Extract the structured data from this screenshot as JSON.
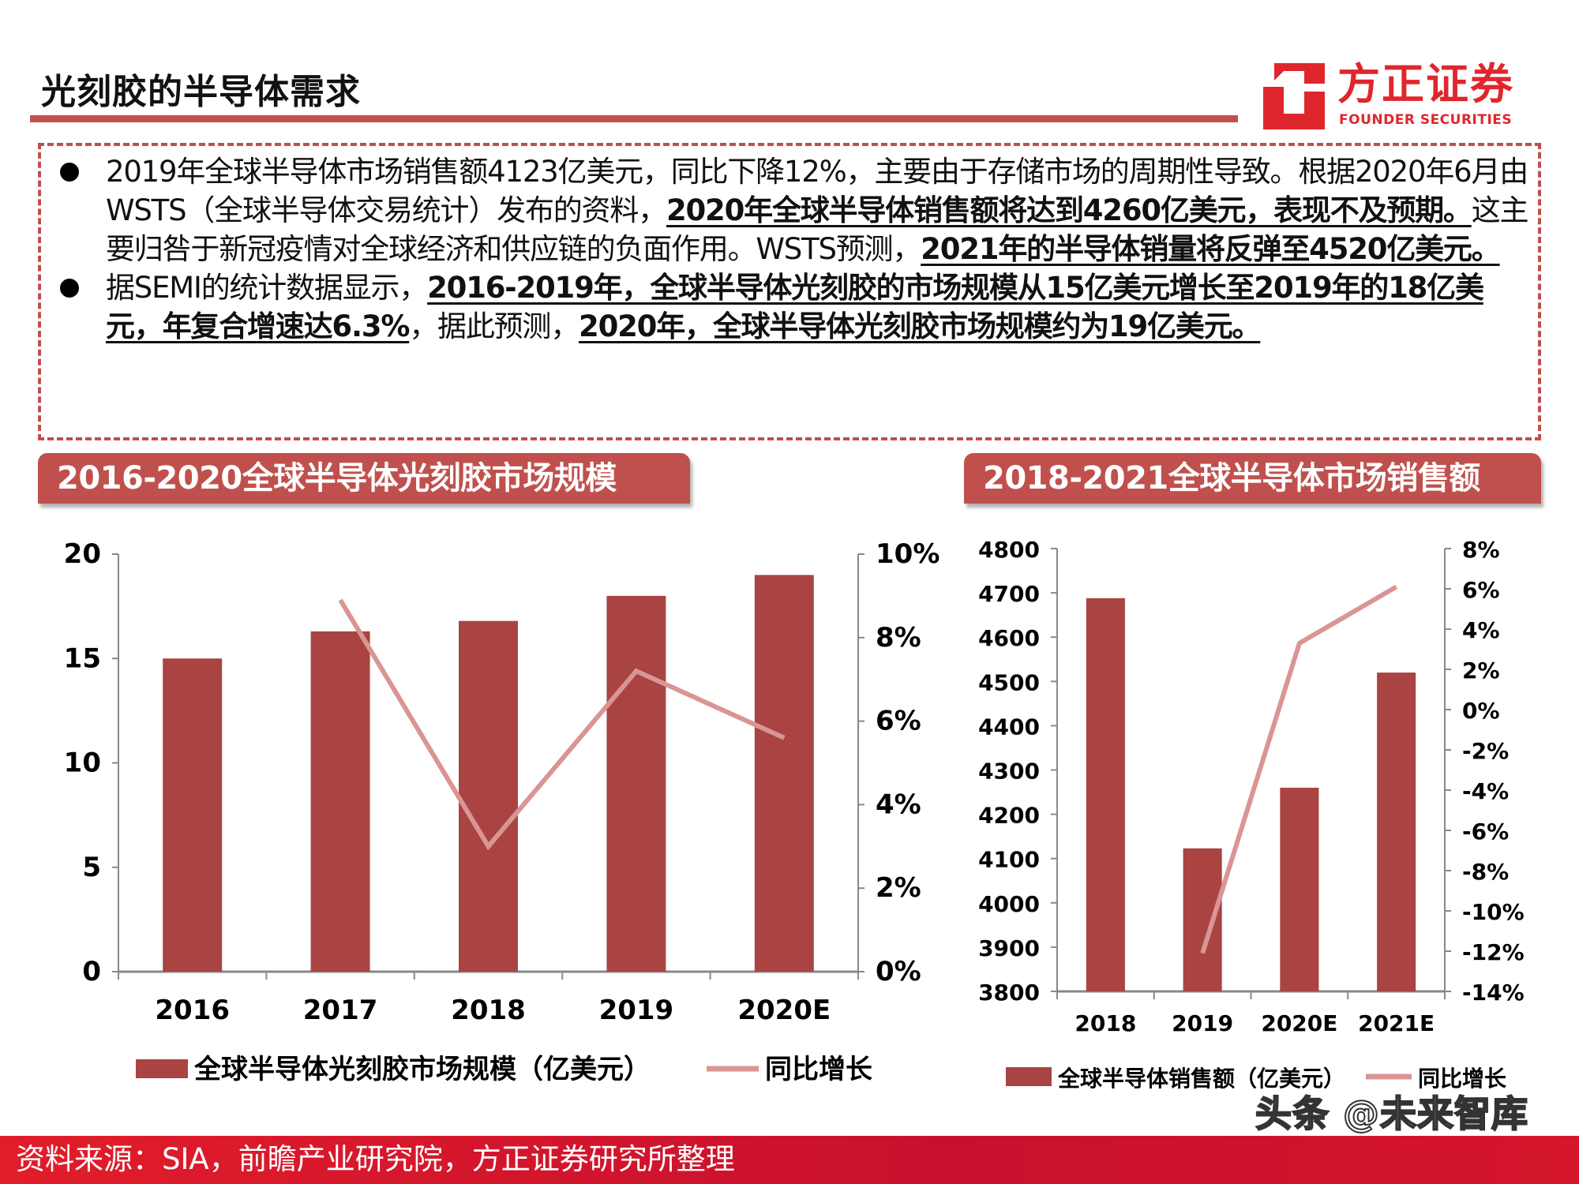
{
  "header": {
    "title": "光刻胶的半导体需求",
    "logo_cn": "方正证券",
    "logo_en": "FOUNDER SECURITIES"
  },
  "summary": {
    "p1": [
      {
        "t": "2019年全球半导体市场销售额4123亿美元，同比下降12%，主要由于存储市场的周期性导致。根据2020年6月由WSTS（全球半导体交易统计）发布的资料，",
        "b": false
      },
      {
        "t": "2020年全球半导体销售额将达到4260亿美元，表现不及预期。",
        "b": true
      },
      {
        "t": "这主要归咎于新冠疫情对全球经济和供应链的负面作用。WSTS预测，",
        "b": false
      },
      {
        "t": "2021年的半导体销量将反弹至4520亿美元。",
        "b": true
      }
    ],
    "p2": [
      {
        "t": "据SEMI的统计数据显示，",
        "b": false
      },
      {
        "t": "2016-2019年，全球半导体光刻胶的市场规模从15亿美元增长至2019年的18亿美元，年复合增速达6.3%",
        "b": true
      },
      {
        "t": "，据此预测，",
        "b": false
      },
      {
        "t": "2020年，全球半导体光刻胶市场规模约为19亿美元。",
        "b": true
      }
    ]
  },
  "colors": {
    "accent": "#c0504d",
    "bar": "#a94442",
    "line": "#d99594",
    "footer": "#d5162b"
  },
  "chart_data": [
    {
      "type": "bar+line",
      "title": "2016-2020全球半导体光刻胶市场规模",
      "categories": [
        "2016",
        "2017",
        "2018",
        "2019",
        "2020E"
      ],
      "series": [
        {
          "name": "全球半导体光刻胶市场规模（亿美元）",
          "type": "bar",
          "axis": "left",
          "values": [
            15,
            16.3,
            16.8,
            18,
            19
          ]
        },
        {
          "name": "同比增长",
          "type": "line",
          "axis": "right",
          "values": [
            null,
            8.9,
            3.0,
            7.2,
            5.6
          ]
        }
      ],
      "ylim": [
        0,
        20
      ],
      "yticks": [
        "0",
        "5",
        "10",
        "15",
        "20"
      ],
      "y2lim": [
        0,
        10
      ],
      "y2ticks": [
        "0%",
        "2%",
        "4%",
        "6%",
        "8%",
        "10%"
      ],
      "grid": false,
      "legend": "bottom"
    },
    {
      "type": "bar+line",
      "title": "2018-2021全球半导体市场销售额",
      "categories": [
        "2018",
        "2019",
        "2020E",
        "2021E"
      ],
      "series": [
        {
          "name": "全球半导体销售额（亿美元）",
          "type": "bar",
          "axis": "left",
          "values": [
            4688,
            4123,
            4260,
            4520
          ]
        },
        {
          "name": "同比增长",
          "type": "line",
          "axis": "right",
          "values": [
            null,
            -12.1,
            3.3,
            6.1
          ]
        }
      ],
      "ylim": [
        3800,
        4800
      ],
      "yticks": [
        "3800",
        "3900",
        "4000",
        "4100",
        "4200",
        "4300",
        "4400",
        "4500",
        "4600",
        "4700",
        "4800"
      ],
      "y2lim": [
        -14,
        8
      ],
      "y2ticks": [
        "-14%",
        "-12%",
        "-10%",
        "-8%",
        "-6%",
        "-4%",
        "-2%",
        "0%",
        "2%",
        "4%",
        "6%",
        "8%"
      ],
      "grid": false,
      "legend": "bottom"
    }
  ],
  "footer": {
    "source": "资料来源：SIA，前瞻产业研究院，方正证券研究所整理",
    "watermark": "头条 @未来智库"
  }
}
